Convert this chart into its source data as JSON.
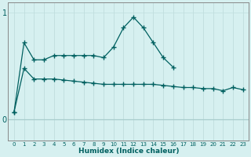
{
  "x_all": [
    0,
    1,
    2,
    3,
    4,
    5,
    6,
    7,
    8,
    9,
    10,
    11,
    12,
    13,
    14,
    15,
    16,
    17,
    18,
    19,
    20,
    21,
    22,
    23
  ],
  "upper_x": [
    0,
    1,
    2,
    3,
    4,
    5,
    6,
    7,
    8,
    9,
    10,
    11,
    12,
    13,
    14,
    15,
    16
  ],
  "upper_y": [
    0.07,
    0.72,
    0.56,
    0.56,
    0.6,
    0.6,
    0.6,
    0.6,
    0.6,
    0.58,
    0.68,
    0.86,
    0.96,
    0.86,
    0.72,
    0.58,
    0.49
  ],
  "lower_x": [
    0,
    1,
    2,
    3,
    4,
    5,
    6,
    7,
    8,
    9,
    10,
    11,
    12,
    13,
    14,
    15,
    16,
    17,
    18,
    19,
    20,
    21,
    22,
    23
  ],
  "lower_y": [
    0.07,
    0.48,
    0.38,
    0.38,
    0.38,
    0.37,
    0.36,
    0.35,
    0.34,
    0.33,
    0.33,
    0.33,
    0.33,
    0.33,
    0.33,
    0.32,
    0.31,
    0.3,
    0.3,
    0.29,
    0.29,
    0.27,
    0.3,
    0.28
  ],
  "bg_color": "#d6f0f0",
  "line_color": "#006060",
  "vgrid_color": "#c0dede",
  "hgrid_color": "#a8cccc",
  "xlabel": "Humidex (Indice chaleur)",
  "ylim": [
    -0.2,
    1.1
  ],
  "xlim": [
    -0.6,
    23.6
  ]
}
